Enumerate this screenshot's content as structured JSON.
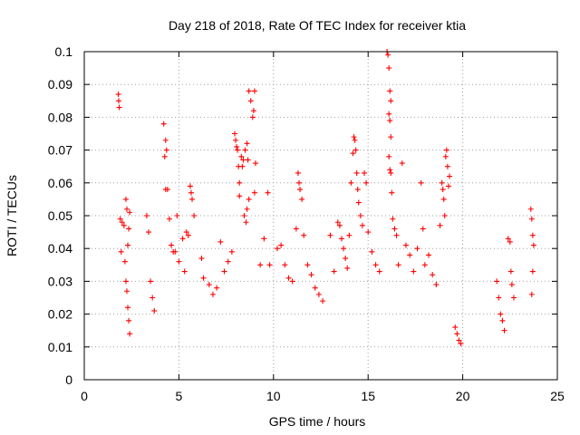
{
  "chart_data": {
    "type": "scatter",
    "title": "Day 218 of 2018, Rate Of TEC Index for receiver ktia",
    "xlabel": "GPS time / hours",
    "ylabel": "ROTI / TECUs",
    "xlim": [
      0,
      25
    ],
    "ylim": [
      0,
      0.1
    ],
    "xticks": [
      0,
      5,
      10,
      15,
      20,
      25
    ],
    "xtick_labels": [
      "0",
      "5",
      "10",
      "15",
      "20",
      "25"
    ],
    "yticks": [
      0,
      0.01,
      0.02,
      0.03,
      0.04,
      0.05,
      0.06,
      0.07,
      0.08,
      0.09,
      0.1
    ],
    "ytick_labels": [
      "0",
      "0.01",
      "0.02",
      "0.03",
      "0.04",
      "0.05",
      "0.06",
      "0.07",
      "0.08",
      "0.09",
      "0.1"
    ],
    "grid": true,
    "legend": "none",
    "marker": "+",
    "color": "#ff0000",
    "series": [
      {
        "name": "ROTI",
        "points": [
          [
            1.8,
            0.087
          ],
          [
            1.82,
            0.085
          ],
          [
            1.85,
            0.083
          ],
          [
            1.9,
            0.049
          ],
          [
            1.95,
            0.039
          ],
          [
            2.0,
            0.048
          ],
          [
            2.1,
            0.047
          ],
          [
            2.2,
            0.055
          ],
          [
            2.25,
            0.052
          ],
          [
            2.3,
            0.041
          ],
          [
            2.35,
            0.046
          ],
          [
            2.4,
            0.051
          ],
          [
            2.15,
            0.036
          ],
          [
            2.2,
            0.03
          ],
          [
            2.25,
            0.027
          ],
          [
            2.3,
            0.022
          ],
          [
            2.35,
            0.018
          ],
          [
            2.4,
            0.014
          ],
          [
            3.3,
            0.05
          ],
          [
            3.4,
            0.045
          ],
          [
            3.5,
            0.03
          ],
          [
            3.6,
            0.025
          ],
          [
            3.7,
            0.021
          ],
          [
            4.2,
            0.078
          ],
          [
            4.3,
            0.073
          ],
          [
            4.35,
            0.07
          ],
          [
            4.25,
            0.068
          ],
          [
            4.3,
            0.058
          ],
          [
            4.4,
            0.058
          ],
          [
            4.5,
            0.049
          ],
          [
            4.6,
            0.041
          ],
          [
            4.7,
            0.039
          ],
          [
            4.8,
            0.039
          ],
          [
            4.9,
            0.05
          ],
          [
            5.0,
            0.036
          ],
          [
            5.2,
            0.043
          ],
          [
            5.3,
            0.033
          ],
          [
            5.4,
            0.045
          ],
          [
            5.5,
            0.044
          ],
          [
            5.6,
            0.059
          ],
          [
            5.7,
            0.055
          ],
          [
            5.8,
            0.05
          ],
          [
            5.65,
            0.057
          ],
          [
            6.2,
            0.037
          ],
          [
            6.3,
            0.031
          ],
          [
            6.6,
            0.029
          ],
          [
            6.8,
            0.026
          ],
          [
            7.0,
            0.028
          ],
          [
            7.2,
            0.042
          ],
          [
            7.4,
            0.033
          ],
          [
            7.6,
            0.036
          ],
          [
            7.8,
            0.039
          ],
          [
            7.95,
            0.075
          ],
          [
            8.0,
            0.073
          ],
          [
            8.05,
            0.071
          ],
          [
            8.1,
            0.07
          ],
          [
            8.15,
            0.065
          ],
          [
            8.2,
            0.06
          ],
          [
            8.3,
            0.068
          ],
          [
            8.35,
            0.065
          ],
          [
            8.4,
            0.067
          ],
          [
            8.5,
            0.07
          ],
          [
            8.6,
            0.072
          ],
          [
            8.65,
            0.067
          ],
          [
            8.7,
            0.088
          ],
          [
            8.8,
            0.085
          ],
          [
            8.9,
            0.08
          ],
          [
            8.95,
            0.082
          ],
          [
            9.0,
            0.088
          ],
          [
            9.05,
            0.066
          ],
          [
            9.0,
            0.057
          ],
          [
            8.7,
            0.055
          ],
          [
            8.6,
            0.052
          ],
          [
            8.55,
            0.048
          ],
          [
            8.45,
            0.05
          ],
          [
            8.2,
            0.056
          ],
          [
            9.3,
            0.035
          ],
          [
            9.5,
            0.043
          ],
          [
            9.7,
            0.057
          ],
          [
            9.8,
            0.035
          ],
          [
            10.2,
            0.04
          ],
          [
            10.4,
            0.041
          ],
          [
            10.6,
            0.035
          ],
          [
            10.8,
            0.031
          ],
          [
            11.0,
            0.03
          ],
          [
            11.2,
            0.046
          ],
          [
            11.3,
            0.063
          ],
          [
            11.35,
            0.06
          ],
          [
            11.4,
            0.058
          ],
          [
            11.5,
            0.055
          ],
          [
            11.6,
            0.044
          ],
          [
            11.8,
            0.035
          ],
          [
            12.0,
            0.032
          ],
          [
            12.2,
            0.028
          ],
          [
            12.4,
            0.026
          ],
          [
            12.6,
            0.024
          ],
          [
            13.0,
            0.044
          ],
          [
            13.2,
            0.033
          ],
          [
            13.4,
            0.048
          ],
          [
            13.5,
            0.047
          ],
          [
            13.6,
            0.043
          ],
          [
            13.7,
            0.04
          ],
          [
            13.8,
            0.037
          ],
          [
            13.9,
            0.034
          ],
          [
            14.0,
            0.044
          ],
          [
            14.1,
            0.06
          ],
          [
            14.2,
            0.069
          ],
          [
            14.25,
            0.074
          ],
          [
            14.3,
            0.073
          ],
          [
            14.35,
            0.07
          ],
          [
            14.4,
            0.063
          ],
          [
            14.45,
            0.058
          ],
          [
            14.5,
            0.054
          ],
          [
            14.6,
            0.05
          ],
          [
            14.7,
            0.047
          ],
          [
            14.8,
            0.063
          ],
          [
            14.9,
            0.06
          ],
          [
            15.0,
            0.045
          ],
          [
            15.2,
            0.039
          ],
          [
            15.4,
            0.035
          ],
          [
            15.6,
            0.033
          ],
          [
            16.0,
            0.1
          ],
          [
            16.05,
            0.099
          ],
          [
            16.1,
            0.095
          ],
          [
            16.15,
            0.088
          ],
          [
            16.2,
            0.085
          ],
          [
            16.1,
            0.081
          ],
          [
            16.15,
            0.079
          ],
          [
            16.2,
            0.074
          ],
          [
            16.1,
            0.068
          ],
          [
            16.15,
            0.064
          ],
          [
            16.2,
            0.063
          ],
          [
            16.25,
            0.057
          ],
          [
            16.3,
            0.049
          ],
          [
            16.4,
            0.046
          ],
          [
            16.5,
            0.044
          ],
          [
            16.6,
            0.035
          ],
          [
            16.8,
            0.066
          ],
          [
            17.0,
            0.041
          ],
          [
            17.2,
            0.038
          ],
          [
            17.4,
            0.033
          ],
          [
            17.6,
            0.04
          ],
          [
            17.8,
            0.06
          ],
          [
            17.9,
            0.046
          ],
          [
            18.0,
            0.035
          ],
          [
            18.2,
            0.038
          ],
          [
            18.4,
            0.032
          ],
          [
            18.6,
            0.029
          ],
          [
            18.8,
            0.047
          ],
          [
            18.9,
            0.06
          ],
          [
            18.95,
            0.058
          ],
          [
            19.0,
            0.055
          ],
          [
            19.05,
            0.05
          ],
          [
            19.1,
            0.068
          ],
          [
            19.15,
            0.07
          ],
          [
            19.2,
            0.065
          ],
          [
            19.25,
            0.059
          ],
          [
            19.3,
            0.062
          ],
          [
            19.6,
            0.016
          ],
          [
            19.7,
            0.014
          ],
          [
            19.8,
            0.012
          ],
          [
            19.9,
            0.011
          ],
          [
            21.8,
            0.03
          ],
          [
            21.9,
            0.025
          ],
          [
            22.0,
            0.02
          ],
          [
            22.1,
            0.018
          ],
          [
            22.2,
            0.015
          ],
          [
            22.4,
            0.043
          ],
          [
            22.5,
            0.042
          ],
          [
            22.55,
            0.033
          ],
          [
            22.6,
            0.029
          ],
          [
            22.7,
            0.025
          ],
          [
            23.6,
            0.052
          ],
          [
            23.65,
            0.049
          ],
          [
            23.7,
            0.044
          ],
          [
            23.75,
            0.041
          ],
          [
            23.7,
            0.033
          ],
          [
            23.65,
            0.026
          ]
        ]
      }
    ]
  }
}
